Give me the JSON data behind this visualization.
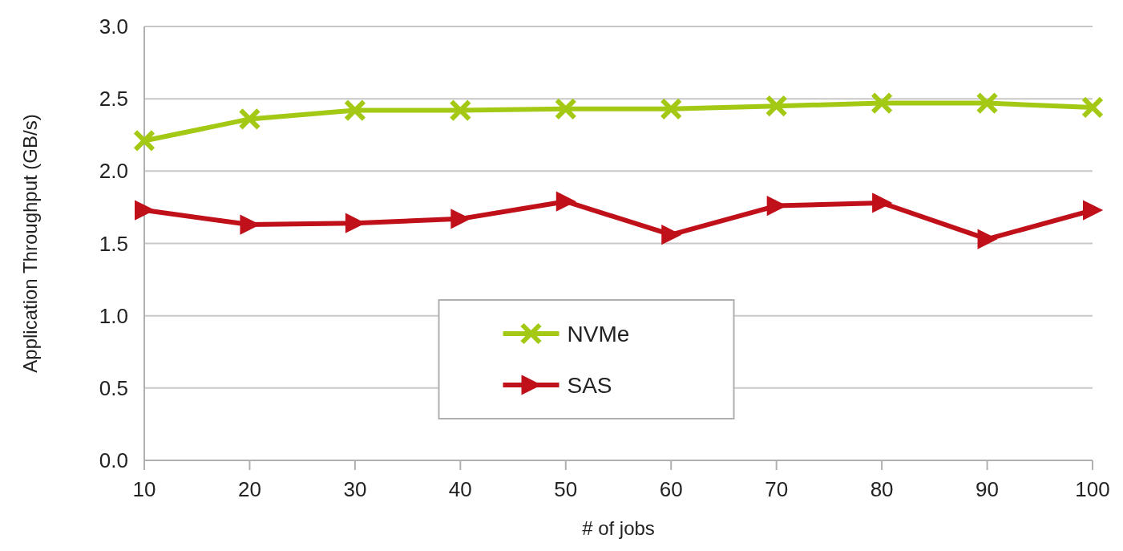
{
  "chart_data": {
    "type": "line",
    "xlabel": "# of jobs",
    "ylabel": "Application Throughput (GB/s)",
    "x": [
      10,
      20,
      30,
      40,
      50,
      60,
      70,
      80,
      90,
      100
    ],
    "series": [
      {
        "name": "NVMe",
        "color": "#a3c915",
        "marker": "cross",
        "values": [
          2.21,
          2.36,
          2.42,
          2.42,
          2.43,
          2.43,
          2.45,
          2.47,
          2.47,
          2.44
        ]
      },
      {
        "name": "SAS",
        "color": "#c0101a",
        "marker": "triangle",
        "values": [
          1.73,
          1.63,
          1.64,
          1.67,
          1.79,
          1.56,
          1.76,
          1.78,
          1.53,
          1.73
        ]
      }
    ],
    "xlim": [
      10,
      100
    ],
    "xticks": [
      10,
      20,
      30,
      40,
      50,
      60,
      70,
      80,
      90,
      100
    ],
    "ylim": [
      0,
      3
    ],
    "yticks": [
      {
        "value": 0,
        "label": "0.0"
      },
      {
        "value": 0.5,
        "label": "0.5"
      },
      {
        "value": 1,
        "label": "1.0"
      },
      {
        "value": 1.5,
        "label": "1.5"
      },
      {
        "value": 2,
        "label": "2.0"
      },
      {
        "value": 2.5,
        "label": "2.5"
      },
      {
        "value": 3,
        "label": "3.0"
      }
    ],
    "grid": "y",
    "legend": "bottom",
    "line_style": "solid"
  }
}
